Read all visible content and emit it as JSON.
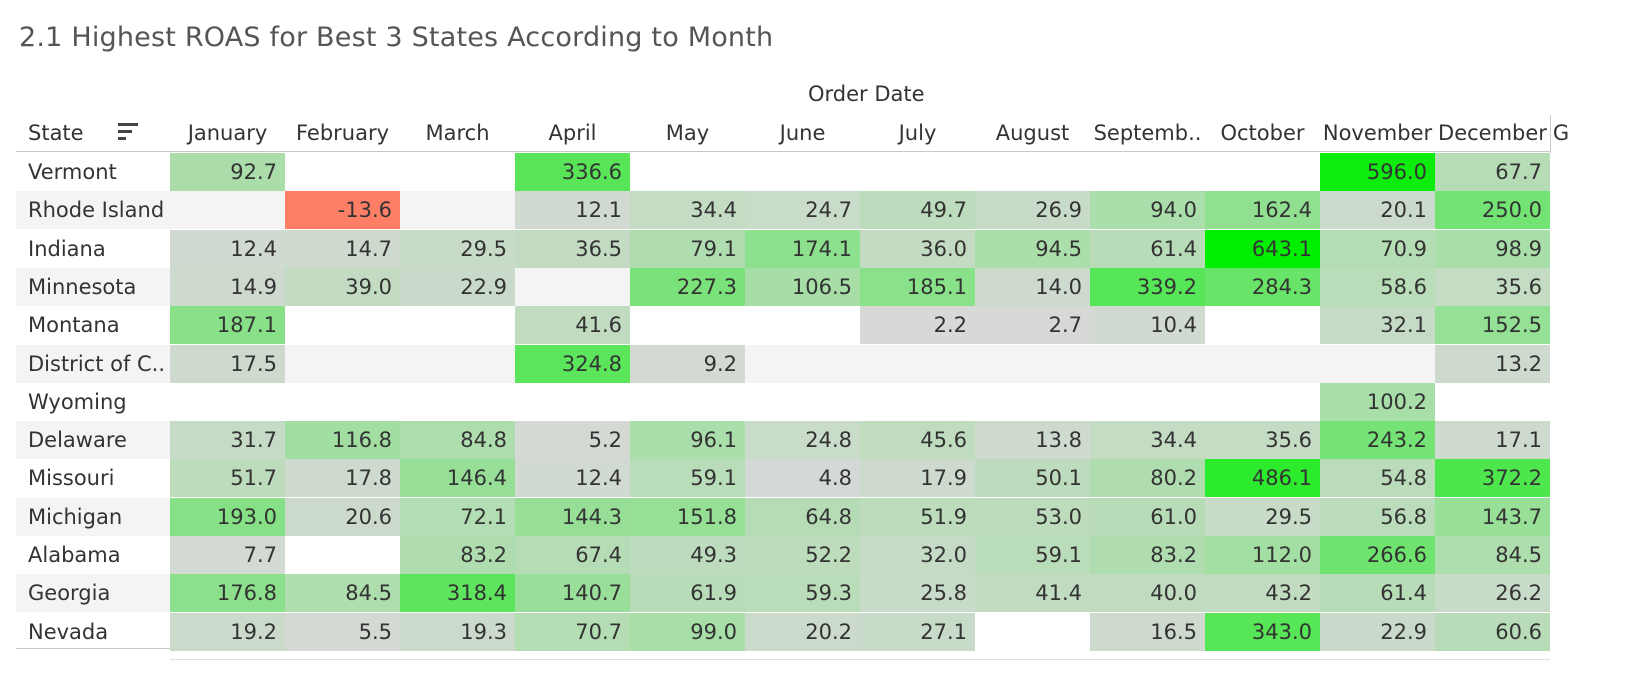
{
  "title": "2.1 Highest ROAS for Best 3 States According to Month",
  "column_group_label": "Order Date",
  "row_header_label": "State",
  "months": [
    "January",
    "February",
    "March",
    "April",
    "May",
    "June",
    "July",
    "August",
    "Septemb..",
    "October",
    "November",
    "December"
  ],
  "overflow_header": "G",
  "colors": {
    "negative": "#ff7f66",
    "low": "#d9d9d9",
    "high": "#00ee00"
  },
  "icons": {
    "sort": "sort-descending-icon"
  },
  "chart_data": {
    "type": "heatmap",
    "title": "2.1 Highest ROAS for Best 3 States According to Month",
    "xlabel": "Order Date",
    "ylabel": "State",
    "x": [
      "January",
      "February",
      "March",
      "April",
      "May",
      "June",
      "July",
      "August",
      "Septemb..",
      "October",
      "November",
      "December"
    ],
    "y": [
      "Vermont",
      "Rhode Island",
      "Indiana",
      "Minnesota",
      "Montana",
      "District of C..",
      "Wyoming",
      "Delaware",
      "Missouri",
      "Michigan",
      "Alabama",
      "Georgia",
      "Nevada"
    ],
    "values": [
      [
        92.7,
        null,
        null,
        336.6,
        null,
        null,
        null,
        null,
        null,
        null,
        596.0,
        67.7
      ],
      [
        null,
        -13.6,
        null,
        12.1,
        34.4,
        24.7,
        49.7,
        26.9,
        94.0,
        162.4,
        20.1,
        250.0
      ],
      [
        12.4,
        14.7,
        29.5,
        36.5,
        79.1,
        174.1,
        36.0,
        94.5,
        61.4,
        643.1,
        70.9,
        98.9
      ],
      [
        14.9,
        39.0,
        22.9,
        null,
        227.3,
        106.5,
        185.1,
        14.0,
        339.2,
        284.3,
        58.6,
        35.6
      ],
      [
        187.1,
        null,
        null,
        41.6,
        null,
        null,
        2.2,
        2.7,
        10.4,
        null,
        32.1,
        152.5
      ],
      [
        17.5,
        null,
        null,
        324.8,
        9.2,
        null,
        null,
        null,
        null,
        null,
        null,
        13.2
      ],
      [
        null,
        null,
        null,
        null,
        null,
        null,
        null,
        null,
        null,
        null,
        100.2,
        null
      ],
      [
        31.7,
        116.8,
        84.8,
        5.2,
        96.1,
        24.8,
        45.6,
        13.8,
        34.4,
        35.6,
        243.2,
        17.1
      ],
      [
        51.7,
        17.8,
        146.4,
        12.4,
        59.1,
        4.8,
        17.9,
        50.1,
        80.2,
        486.1,
        54.8,
        372.2
      ],
      [
        193.0,
        20.6,
        72.1,
        144.3,
        151.8,
        64.8,
        51.9,
        53.0,
        61.0,
        29.5,
        56.8,
        143.7
      ],
      [
        7.7,
        null,
        83.2,
        67.4,
        49.3,
        52.2,
        32.0,
        59.1,
        83.2,
        112.0,
        266.6,
        84.5
      ],
      [
        176.8,
        84.5,
        318.4,
        140.7,
        61.9,
        59.3,
        25.8,
        41.4,
        40.0,
        43.2,
        61.4,
        26.2
      ],
      [
        19.2,
        5.5,
        19.3,
        70.7,
        99.0,
        20.2,
        27.1,
        null,
        16.5,
        343.0,
        22.9,
        60.6
      ]
    ]
  }
}
